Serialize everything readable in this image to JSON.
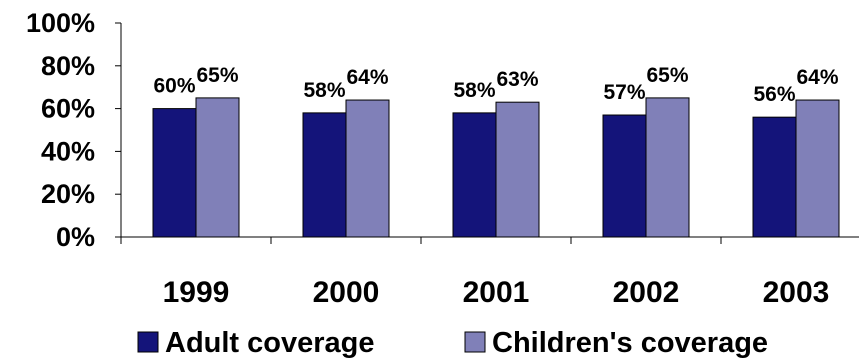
{
  "chart_data": {
    "type": "bar",
    "categories": [
      "1999",
      "2000",
      "2001",
      "2002",
      "2003"
    ],
    "series": [
      {
        "name": "Adult coverage",
        "values": [
          60,
          58,
          58,
          57,
          56
        ],
        "labels": [
          "60%",
          "58%",
          "58%",
          "57%",
          "56%"
        ],
        "color": "#14147a"
      },
      {
        "name": "Children's coverage",
        "values": [
          65,
          64,
          63,
          65,
          64
        ],
        "labels": [
          "65%",
          "64%",
          "63%",
          "65%",
          "64%"
        ],
        "color": "#8080b8"
      }
    ],
    "y_ticks": [
      "0%",
      "20%",
      "40%",
      "60%",
      "80%",
      "100%"
    ],
    "ylim": [
      0,
      100
    ],
    "title": "",
    "xlabel": "",
    "ylabel": "",
    "grid": false,
    "legend": "bottom"
  }
}
